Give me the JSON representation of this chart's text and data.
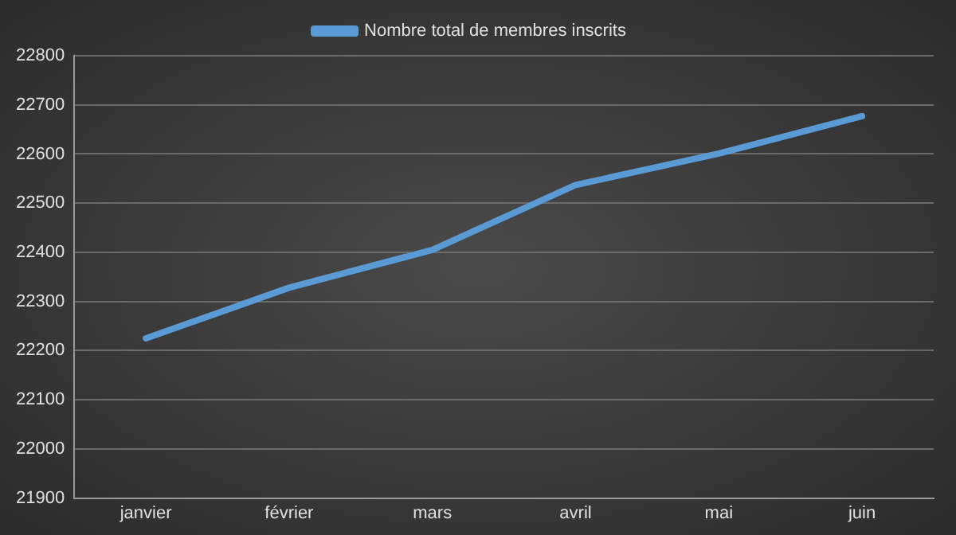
{
  "chart_data": {
    "type": "line",
    "categories": [
      "janvier",
      "février",
      "mars",
      "avril",
      "mai",
      "juin"
    ],
    "series": [
      {
        "name": "Nombre total de membres inscrits",
        "color": "#5b9bd5",
        "values": [
          22225,
          22328,
          22405,
          22537,
          22601,
          22677
        ]
      }
    ],
    "ylim": [
      21900,
      22800
    ],
    "yticks": [
      21900,
      22000,
      22100,
      22200,
      22300,
      22400,
      22500,
      22600,
      22700,
      22800
    ],
    "grid": "y",
    "legend": "top",
    "marker": "none",
    "line_style": "solid"
  }
}
